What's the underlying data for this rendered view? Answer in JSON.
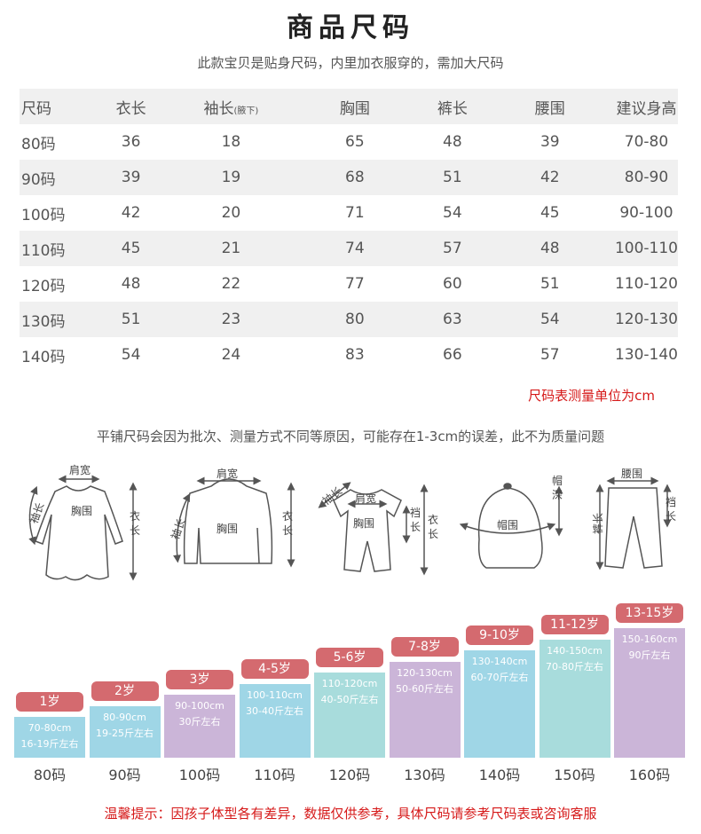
{
  "title": "商品尺码",
  "subtitle": "此款宝贝是贴身尺码，内里加衣服穿的，需加大尺码",
  "table": {
    "headers": [
      "尺码",
      "衣长",
      "袖长",
      "胸围",
      "裤长",
      "腰围",
      "建议身高"
    ],
    "sleeve_note": "(腋下)",
    "rows": [
      [
        "80码",
        "36",
        "18",
        "65",
        "48",
        "39",
        "70-80"
      ],
      [
        "90码",
        "39",
        "19",
        "68",
        "51",
        "42",
        "80-90"
      ],
      [
        "100码",
        "42",
        "20",
        "71",
        "54",
        "45",
        "90-100"
      ],
      [
        "110码",
        "45",
        "21",
        "74",
        "57",
        "48",
        "100-110"
      ],
      [
        "120码",
        "48",
        "22",
        "77",
        "60",
        "51",
        "110-120"
      ],
      [
        "130码",
        "51",
        "23",
        "80",
        "63",
        "54",
        "120-130"
      ],
      [
        "140码",
        "54",
        "24",
        "83",
        "66",
        "57",
        "130-140"
      ]
    ]
  },
  "unit_note": "尺码表测量单位为cm",
  "flat_note": "平铺尺码会因为批次、测量方式不同等原因，可能存在1-3cm的误差，此不为质量问题",
  "diagrams": {
    "dress": {
      "shoulder": "肩宽",
      "sleeve": "袖长",
      "chest": "胸围",
      "length": "衣长"
    },
    "hoodie": {
      "shoulder": "肩宽",
      "sleeve": "袖长",
      "chest": "胸围",
      "length": "衣长"
    },
    "romper": {
      "sleeve": "袖长",
      "shoulder": "肩宽",
      "chest": "胸围",
      "crotch": "裆长",
      "length": "衣长"
    },
    "hat": {
      "circumference": "帽围",
      "depth": "帽深"
    },
    "pants": {
      "waist": "腰围",
      "length": "裤长",
      "crotch": "裆长"
    }
  },
  "growth_chart": {
    "colors": [
      "#9fd6e6",
      "#9fd6e6",
      "#cbb5d8",
      "#9fd6e6",
      "#a8dcdc",
      "#cbb5d8",
      "#9fd6e6",
      "#a8dcdc",
      "#cbb5d8"
    ],
    "badge_color": "#d46a6f",
    "bars": [
      {
        "age": "1岁",
        "height": "70-80cm",
        "weight": "16-19斤左右",
        "size": "80码",
        "level": 1
      },
      {
        "age": "2岁",
        "height": "80-90cm",
        "weight": "19-25斤左右",
        "size": "90码",
        "level": 2
      },
      {
        "age": "3岁",
        "height": "90-100cm",
        "weight": "30斤左右",
        "size": "100码",
        "level": 3
      },
      {
        "age": "4-5岁",
        "height": "100-110cm",
        "weight": "30-40斤左右",
        "size": "110码",
        "level": 4
      },
      {
        "age": "5-6岁",
        "height": "110-120cm",
        "weight": "40-50斤左右",
        "size": "120码",
        "level": 5
      },
      {
        "age": "7-8岁",
        "height": "120-130cm",
        "weight": "50-60斤左右",
        "size": "130码",
        "level": 6
      },
      {
        "age": "9-10岁",
        "height": "130-140cm",
        "weight": "60-70斤左右",
        "size": "140码",
        "level": 7
      },
      {
        "age": "11-12岁",
        "height": "140-150cm",
        "weight": "70-80斤左右",
        "size": "150码",
        "level": 8
      },
      {
        "age": "13-15岁",
        "height": "150-160cm",
        "weight": "90斤左右",
        "size": "160码",
        "level": 9
      }
    ]
  },
  "tip": "温馨提示：因孩子体型各有差异，数据仅供参考，具体尺码请参考尺码表或咨询客服"
}
